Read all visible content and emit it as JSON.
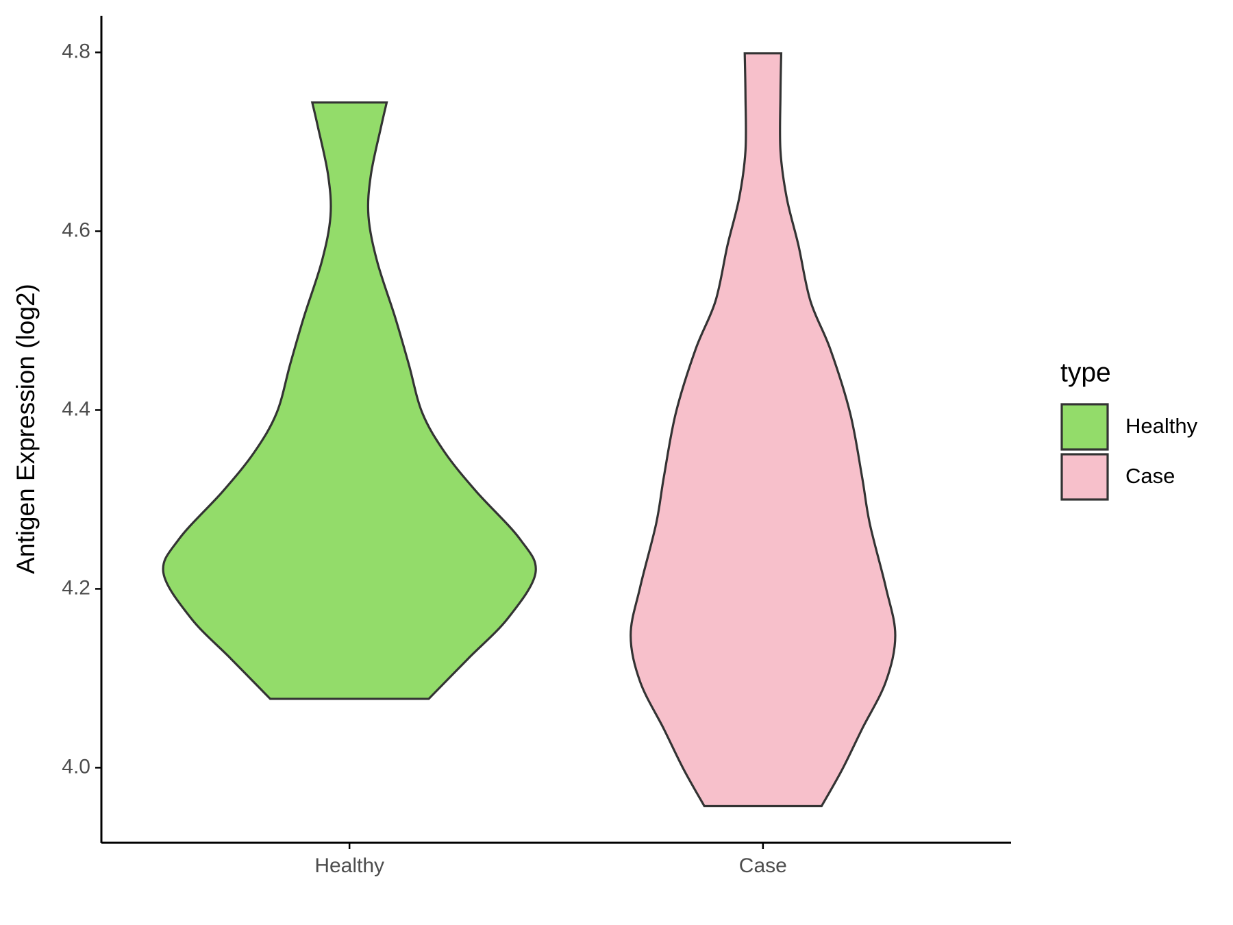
{
  "chart_data": {
    "type": "violin",
    "y_label": "Antigen Expression (log2)",
    "categories": [
      "Healthy",
      "Case"
    ],
    "legend_title": "type",
    "series": [
      {
        "name": "Healthy",
        "color": "#93dc6a",
        "y": [
          4.744,
          4.717,
          4.663,
          4.617,
          4.566,
          4.504,
          4.451,
          4.397,
          4.353,
          4.309,
          4.256,
          4.218,
          4.167,
          4.122,
          4.077
        ],
        "density": [
          0.2,
          0.17,
          0.115,
          0.102,
          0.149,
          0.245,
          0.319,
          0.391,
          0.511,
          0.681,
          0.915,
          1,
          0.851,
          0.638,
          0.426
        ]
      },
      {
        "name": "Case",
        "color": "#f7c0cb",
        "y": [
          4.799,
          4.752,
          4.69,
          4.637,
          4.584,
          4.522,
          4.468,
          4.397,
          4.326,
          4.273,
          4.202,
          4.148,
          4.096,
          4.043,
          3.998,
          3.957
        ],
        "density": [
          0.098,
          0.094,
          0.094,
          0.128,
          0.191,
          0.255,
          0.362,
          0.468,
          0.532,
          0.574,
          0.66,
          0.711,
          0.66,
          0.532,
          0.426,
          0.315
        ]
      }
    ],
    "ylim": [
      3.916,
      4.841
    ],
    "yticks": [
      {
        "value": 4,
        "label": "4.0"
      },
      4.2,
      4.4,
      4.6,
      4.8
    ],
    "legend_position": "right"
  }
}
